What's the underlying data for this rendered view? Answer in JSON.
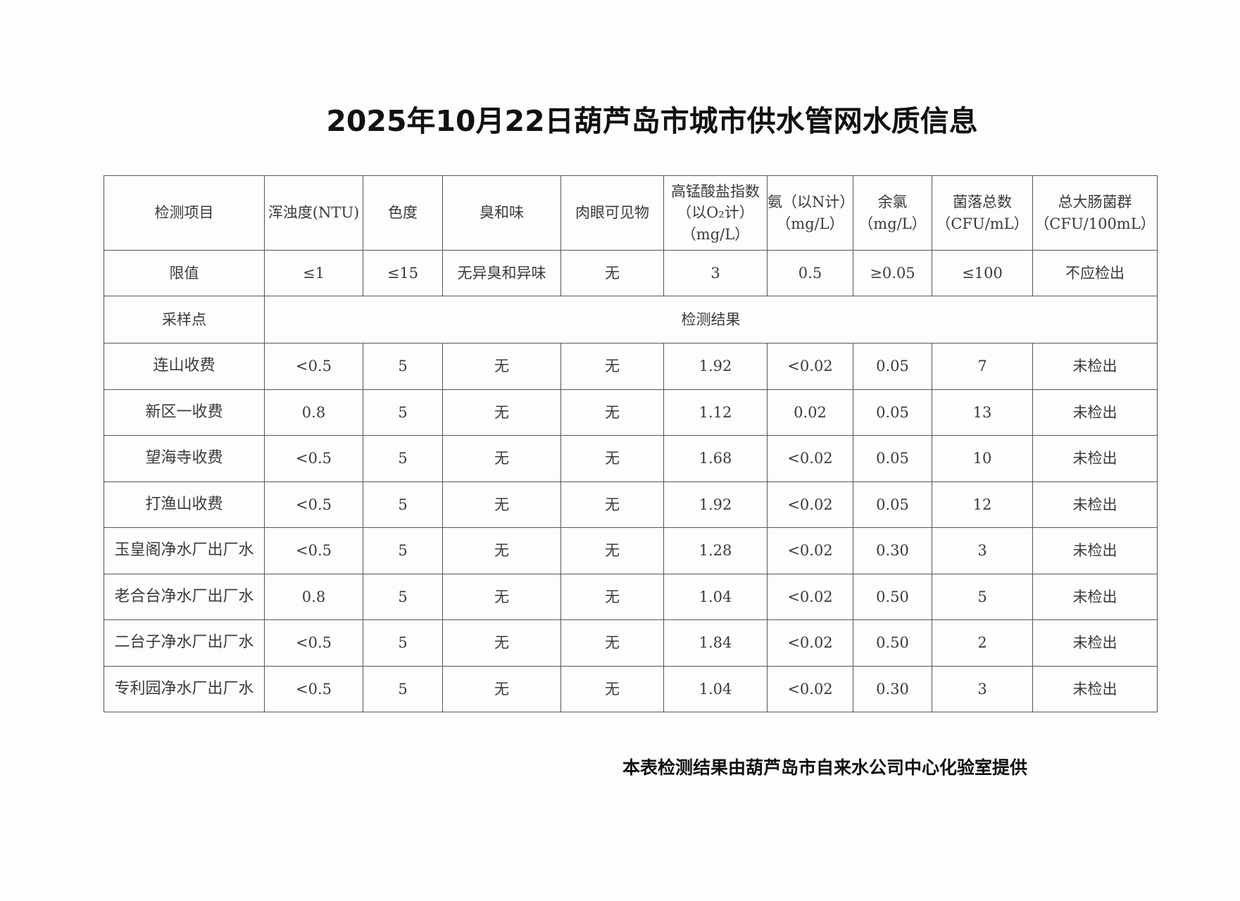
{
  "title": "2025年10月22日葫芦岛市城市供水管网水质信息",
  "table": {
    "headers": [
      "检测项目",
      "浑浊度(NTU)",
      "色度",
      "臭和味",
      "肉眼可见物",
      [
        "高锰酸盐指数",
        "（以O₂计）",
        "（mg/L）"
      ],
      [
        "氨（以N计）",
        "（mg/L）"
      ],
      [
        "余氯",
        "（mg/L）"
      ],
      [
        "菌落总数",
        "（CFU/mL）"
      ],
      [
        "总大肠菌群",
        "（CFU/100mL）"
      ]
    ],
    "limits": [
      "限值",
      "≤1",
      "≤15",
      "无异臭和异味",
      "无",
      "3",
      "0.5",
      "≥0.05",
      "≤100",
      "不应检出"
    ],
    "sampling_label": "采样点",
    "results_label": "检测结果",
    "rows": [
      [
        "连山收费",
        "<0.5",
        "5",
        "无",
        "无",
        "1.92",
        "<0.02",
        "0.05",
        "7",
        "未检出"
      ],
      [
        "新区一收费",
        "0.8",
        "5",
        "无",
        "无",
        "1.12",
        "0.02",
        "0.05",
        "13",
        "未检出"
      ],
      [
        "望海寺收费",
        "<0.5",
        "5",
        "无",
        "无",
        "1.68",
        "<0.02",
        "0.05",
        "10",
        "未检出"
      ],
      [
        "打渔山收费",
        "<0.5",
        "5",
        "无",
        "无",
        "1.92",
        "<0.02",
        "0.05",
        "12",
        "未检出"
      ],
      [
        "玉皇阁净水厂出厂水",
        "<0.5",
        "5",
        "无",
        "无",
        "1.28",
        "<0.02",
        "0.30",
        "3",
        "未检出"
      ],
      [
        "老合台净水厂出厂水",
        "0.8",
        "5",
        "无",
        "无",
        "1.04",
        "<0.02",
        "0.50",
        "5",
        "未检出"
      ],
      [
        "二台子净水厂出厂水",
        "<0.5",
        "5",
        "无",
        "无",
        "1.84",
        "<0.02",
        "0.50",
        "2",
        "未检出"
      ],
      [
        "专利园净水厂出厂水",
        "<0.5",
        "5",
        "无",
        "无",
        "1.04",
        "<0.02",
        "0.30",
        "3",
        "未检出"
      ]
    ]
  },
  "footer": "本表检测结果由葫芦岛市自来水公司中心化验室提供"
}
